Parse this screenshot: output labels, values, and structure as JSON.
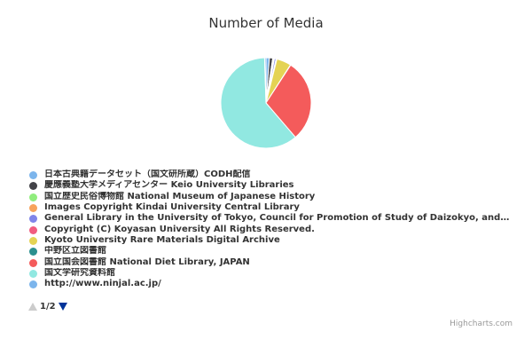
{
  "chart_data": {
    "type": "pie",
    "title": "Number of Media",
    "series": [
      {
        "name": "",
        "labels": [
          "日本古典籍データセット（国文研所蔵）CODH配信",
          "慶應義塾大学メディアセンター Keio University Libraries",
          "国立歴史民俗博物館 National Museum of Japanese History",
          "Images Copyright Kindai University Central Library",
          "General Library in the University of Tokyo, Council for Promotion of Study of Daizokyo, and t…",
          "Copyright (C) Koyasan University All Rights Reserved.",
          "Kyoto University Rare Materials Digital Archive",
          "中野区立図書館",
          "国立国会図書館 National Diet Library, JAPAN",
          "国文学研究資料館",
          "http://www.ninjal.ac.jp/"
        ],
        "values": [
          1.2,
          1.2,
          0.3,
          0.3,
          0.6,
          0.3,
          5.2,
          0.1,
          29.5,
          60.8,
          0.5
        ],
        "colors": [
          "#7cb5ec",
          "#434348",
          "#90ed7d",
          "#f7a35c",
          "#8085e9",
          "#f15c80",
          "#e4d354",
          "#2b908f",
          "#f45b5b",
          "#91e8e1",
          "#7cb5ec"
        ]
      }
    ]
  },
  "legend": {
    "pager_text": "1/2"
  },
  "credits": {
    "text": "Highcharts.com"
  }
}
